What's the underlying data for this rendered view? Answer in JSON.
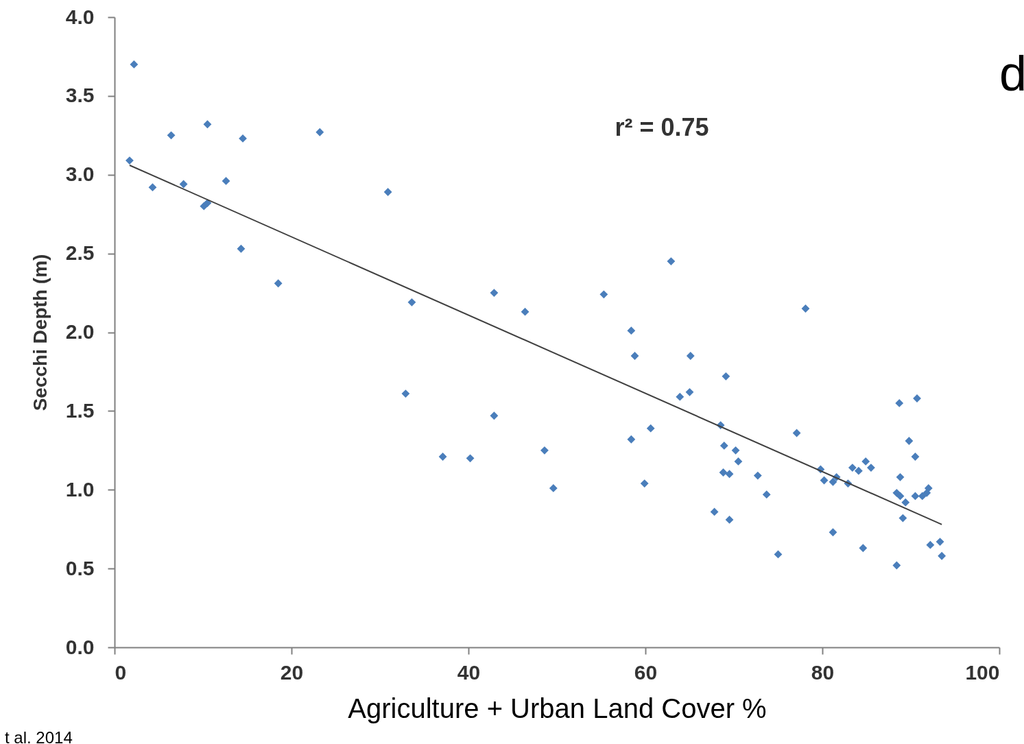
{
  "chart_data": {
    "type": "scatter",
    "xlabel": "Agriculture + Urban Land Cover %",
    "ylabel": "Secchi Depth (m)",
    "annotations": [
      "r² = 0.75",
      "d",
      "t al. 2014"
    ],
    "xlim": [
      0,
      100
    ],
    "xticks": [
      0,
      20,
      40,
      60,
      80,
      100
    ],
    "ylim": [
      0,
      4
    ],
    "yticks": [
      {
        "value": 0,
        "label": "0.0"
      },
      0.5,
      {
        "value": 1,
        "label": "1.0"
      },
      1.5,
      {
        "value": 2,
        "label": "2.0"
      },
      2.5,
      {
        "value": 3,
        "label": "3.0"
      },
      3.5,
      {
        "value": 4,
        "label": "4.0"
      }
    ],
    "grid": false,
    "series": [
      {
        "marker": "diamond",
        "color": "#4a7ebb",
        "x": [
          2.2,
          1.7,
          4.3,
          6.4,
          7.8,
          10.5,
          10.1,
          10.5,
          12.6,
          14.5,
          14.3,
          18.5,
          23.2,
          30.9,
          33.6,
          32.9,
          37.1,
          40.2,
          42.9,
          42.9,
          46.4,
          48.6,
          49.6,
          55.3,
          58.4,
          58.8,
          58.4,
          60.6,
          59.9,
          62.9,
          63.9,
          65.0,
          65.1,
          67.8,
          68.5,
          69.1,
          68.9,
          68.8,
          69.5,
          70.2,
          70.5,
          69.5,
          72.7,
          73.7,
          75.0,
          77.1,
          78.1,
          79.8,
          80.2,
          81.2,
          81.6,
          81.2,
          82.9,
          83.4,
          84.1,
          84.9,
          85.5,
          84.6,
          88.4,
          88.7,
          88.8,
          88.4,
          88.8,
          89.4,
          89.1,
          89.8,
          90.5,
          90.7,
          90.5,
          91.3,
          91.8,
          92.0,
          92.2,
          93.3,
          93.5
        ],
        "values": [
          3.7,
          3.09,
          2.92,
          3.25,
          2.94,
          3.32,
          2.8,
          2.82,
          2.96,
          3.23,
          2.53,
          2.31,
          3.27,
          2.89,
          2.19,
          1.61,
          1.21,
          1.2,
          2.25,
          1.47,
          2.13,
          1.25,
          1.01,
          2.24,
          2.01,
          1.85,
          1.32,
          1.39,
          1.04,
          2.45,
          1.59,
          1.62,
          1.85,
          0.86,
          1.41,
          1.72,
          1.28,
          1.11,
          1.1,
          1.25,
          1.18,
          0.81,
          1.09,
          0.97,
          0.59,
          1.36,
          2.15,
          1.13,
          1.06,
          1.05,
          1.08,
          0.73,
          1.04,
          1.14,
          1.12,
          1.18,
          1.14,
          0.63,
          0.52,
          1.55,
          1.08,
          0.98,
          0.96,
          0.92,
          0.82,
          1.31,
          1.21,
          1.58,
          0.96,
          0.96,
          0.98,
          1.01,
          0.65,
          0.67,
          0.58
        ]
      },
      {
        "type": "line",
        "marker": "none",
        "color": "#404040",
        "line_style": "solid",
        "x": [
          1.7,
          93.5
        ],
        "values": [
          3.06,
          0.78
        ]
      }
    ]
  }
}
